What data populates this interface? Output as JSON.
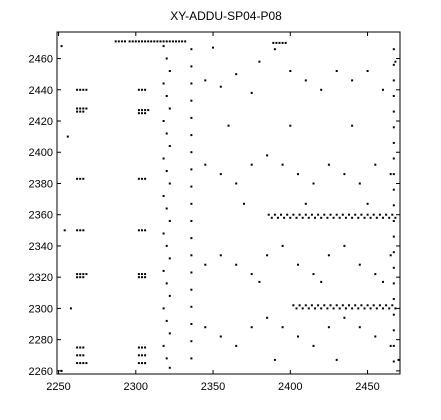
{
  "chart_data": {
    "type": "scatter",
    "title": "XY-ADDU-SP04-P08",
    "xlabel": "",
    "ylabel": "",
    "xlim": [
      2249,
      2471
    ],
    "ylim": [
      2258,
      2477
    ],
    "x_ticks": [
      2250,
      2300,
      2350,
      2400,
      2450
    ],
    "y_ticks": [
      2260,
      2280,
      2300,
      2320,
      2340,
      2360,
      2380,
      2400,
      2420,
      2440,
      2460
    ],
    "grid": false,
    "legend": "none",
    "marker_color": "#000000",
    "series": [
      {
        "points": [
          [
            2262,
            2440
          ],
          [
            2264,
            2440
          ],
          [
            2266,
            2440
          ],
          [
            2268,
            2440
          ],
          [
            2262,
            2428
          ],
          [
            2264,
            2428
          ],
          [
            2266,
            2428
          ],
          [
            2268,
            2428
          ],
          [
            2262,
            2426
          ],
          [
            2264,
            2426
          ],
          [
            2266,
            2426
          ],
          [
            2262,
            2383
          ],
          [
            2264,
            2383
          ],
          [
            2266,
            2383
          ],
          [
            2262,
            2350
          ],
          [
            2264,
            2350
          ],
          [
            2266,
            2350
          ],
          [
            2262,
            2322
          ],
          [
            2264,
            2322
          ],
          [
            2266,
            2322
          ],
          [
            2268,
            2322
          ],
          [
            2262,
            2320
          ],
          [
            2264,
            2320
          ],
          [
            2266,
            2320
          ],
          [
            2262,
            2275
          ],
          [
            2264,
            2275
          ],
          [
            2266,
            2275
          ],
          [
            2262,
            2270
          ],
          [
            2264,
            2270
          ],
          [
            2266,
            2270
          ],
          [
            2262,
            2265
          ],
          [
            2264,
            2265
          ],
          [
            2266,
            2265
          ],
          [
            2268,
            2265
          ],
          [
            2302,
            2440
          ],
          [
            2304,
            2440
          ],
          [
            2306,
            2440
          ],
          [
            2302,
            2427
          ],
          [
            2304,
            2427
          ],
          [
            2306,
            2427
          ],
          [
            2308,
            2427
          ],
          [
            2302,
            2425
          ],
          [
            2304,
            2425
          ],
          [
            2306,
            2425
          ],
          [
            2302,
            2383
          ],
          [
            2304,
            2383
          ],
          [
            2306,
            2383
          ],
          [
            2302,
            2350
          ],
          [
            2304,
            2350
          ],
          [
            2306,
            2350
          ],
          [
            2302,
            2322
          ],
          [
            2304,
            2322
          ],
          [
            2306,
            2322
          ],
          [
            2302,
            2320
          ],
          [
            2304,
            2320
          ],
          [
            2306,
            2320
          ],
          [
            2302,
            2275
          ],
          [
            2304,
            2275
          ],
          [
            2306,
            2275
          ],
          [
            2302,
            2270
          ],
          [
            2304,
            2270
          ],
          [
            2306,
            2270
          ],
          [
            2302,
            2265
          ],
          [
            2304,
            2265
          ],
          [
            2306,
            2265
          ],
          [
            2318,
            2468
          ],
          [
            2320,
            2460
          ],
          [
            2322,
            2452
          ],
          [
            2318,
            2444
          ],
          [
            2320,
            2436
          ],
          [
            2322,
            2428
          ],
          [
            2318,
            2420
          ],
          [
            2320,
            2412
          ],
          [
            2322,
            2404
          ],
          [
            2318,
            2396
          ],
          [
            2320,
            2388
          ],
          [
            2322,
            2380
          ],
          [
            2318,
            2372
          ],
          [
            2320,
            2364
          ],
          [
            2322,
            2356
          ],
          [
            2318,
            2348
          ],
          [
            2320,
            2340
          ],
          [
            2322,
            2332
          ],
          [
            2318,
            2324
          ],
          [
            2320,
            2316
          ],
          [
            2322,
            2308
          ],
          [
            2318,
            2300
          ],
          [
            2320,
            2292
          ],
          [
            2322,
            2284
          ],
          [
            2318,
            2276
          ],
          [
            2320,
            2268
          ],
          [
            2322,
            2262
          ],
          [
            2336,
            2466
          ],
          [
            2336,
            2455
          ],
          [
            2336,
            2444
          ],
          [
            2336,
            2433
          ],
          [
            2336,
            2422
          ],
          [
            2336,
            2411
          ],
          [
            2336,
            2400
          ],
          [
            2336,
            2389
          ],
          [
            2336,
            2378
          ],
          [
            2336,
            2367
          ],
          [
            2336,
            2356
          ],
          [
            2336,
            2345
          ],
          [
            2336,
            2334
          ],
          [
            2336,
            2323
          ],
          [
            2336,
            2312
          ],
          [
            2336,
            2301
          ],
          [
            2336,
            2290
          ],
          [
            2336,
            2279
          ],
          [
            2336,
            2268
          ],
          [
            2345,
            2446
          ],
          [
            2355,
            2442
          ],
          [
            2365,
            2450
          ],
          [
            2375,
            2438
          ],
          [
            2380,
            2458
          ],
          [
            2390,
            2466
          ],
          [
            2400,
            2452
          ],
          [
            2410,
            2446
          ],
          [
            2420,
            2440
          ],
          [
            2430,
            2452
          ],
          [
            2440,
            2446
          ],
          [
            2450,
            2452
          ],
          [
            2460,
            2440
          ],
          [
            2468,
            2458
          ],
          [
            2345,
            2392
          ],
          [
            2355,
            2386
          ],
          [
            2365,
            2380
          ],
          [
            2375,
            2392
          ],
          [
            2385,
            2398
          ],
          [
            2395,
            2392
          ],
          [
            2405,
            2386
          ],
          [
            2415,
            2380
          ],
          [
            2425,
            2392
          ],
          [
            2435,
            2386
          ],
          [
            2445,
            2380
          ],
          [
            2455,
            2392
          ],
          [
            2465,
            2386
          ],
          [
            2345,
            2328
          ],
          [
            2355,
            2334
          ],
          [
            2365,
            2328
          ],
          [
            2375,
            2322
          ],
          [
            2385,
            2334
          ],
          [
            2395,
            2340
          ],
          [
            2405,
            2328
          ],
          [
            2415,
            2322
          ],
          [
            2425,
            2334
          ],
          [
            2435,
            2340
          ],
          [
            2445,
            2328
          ],
          [
            2455,
            2322
          ],
          [
            2465,
            2334
          ],
          [
            2345,
            2288
          ],
          [
            2355,
            2282
          ],
          [
            2365,
            2276
          ],
          [
            2375,
            2288
          ],
          [
            2385,
            2294
          ],
          [
            2395,
            2288
          ],
          [
            2405,
            2282
          ],
          [
            2415,
            2276
          ],
          [
            2425,
            2288
          ],
          [
            2435,
            2294
          ],
          [
            2445,
            2288
          ],
          [
            2455,
            2282
          ],
          [
            2465,
            2276
          ],
          [
            2350,
            2467
          ],
          [
            2360,
            2417
          ],
          [
            2370,
            2367
          ],
          [
            2380,
            2317
          ],
          [
            2390,
            2267
          ],
          [
            2400,
            2417
          ],
          [
            2410,
            2367
          ],
          [
            2420,
            2317
          ],
          [
            2430,
            2267
          ],
          [
            2440,
            2417
          ],
          [
            2450,
            2367
          ],
          [
            2460,
            2317
          ],
          [
            2470,
            2267
          ],
          [
            2386,
            2360
          ],
          [
            2388,
            2358
          ],
          [
            2390,
            2360
          ],
          [
            2392,
            2358
          ],
          [
            2394,
            2360
          ],
          [
            2396,
            2358
          ],
          [
            2398,
            2360
          ],
          [
            2400,
            2358
          ],
          [
            2402,
            2360
          ],
          [
            2404,
            2358
          ],
          [
            2406,
            2360
          ],
          [
            2408,
            2358
          ],
          [
            2410,
            2360
          ],
          [
            2412,
            2358
          ],
          [
            2414,
            2360
          ],
          [
            2416,
            2358
          ],
          [
            2418,
            2360
          ],
          [
            2420,
            2358
          ],
          [
            2422,
            2360
          ],
          [
            2424,
            2358
          ],
          [
            2426,
            2360
          ],
          [
            2428,
            2358
          ],
          [
            2430,
            2360
          ],
          [
            2432,
            2358
          ],
          [
            2434,
            2360
          ],
          [
            2436,
            2358
          ],
          [
            2438,
            2360
          ],
          [
            2440,
            2358
          ],
          [
            2442,
            2360
          ],
          [
            2444,
            2358
          ],
          [
            2446,
            2360
          ],
          [
            2448,
            2358
          ],
          [
            2450,
            2360
          ],
          [
            2452,
            2358
          ],
          [
            2454,
            2360
          ],
          [
            2456,
            2358
          ],
          [
            2458,
            2360
          ],
          [
            2460,
            2358
          ],
          [
            2462,
            2360
          ],
          [
            2464,
            2358
          ],
          [
            2466,
            2360
          ],
          [
            2468,
            2358
          ],
          [
            2402,
            2302
          ],
          [
            2404,
            2300
          ],
          [
            2406,
            2302
          ],
          [
            2408,
            2300
          ],
          [
            2410,
            2302
          ],
          [
            2412,
            2300
          ],
          [
            2414,
            2302
          ],
          [
            2416,
            2300
          ],
          [
            2418,
            2302
          ],
          [
            2420,
            2300
          ],
          [
            2422,
            2302
          ],
          [
            2424,
            2300
          ],
          [
            2426,
            2302
          ],
          [
            2428,
            2300
          ],
          [
            2430,
            2302
          ],
          [
            2432,
            2300
          ],
          [
            2434,
            2302
          ],
          [
            2436,
            2300
          ],
          [
            2438,
            2302
          ],
          [
            2440,
            2300
          ],
          [
            2442,
            2302
          ],
          [
            2444,
            2300
          ],
          [
            2446,
            2302
          ],
          [
            2448,
            2300
          ],
          [
            2450,
            2302
          ],
          [
            2452,
            2300
          ],
          [
            2454,
            2302
          ],
          [
            2456,
            2300
          ],
          [
            2458,
            2302
          ],
          [
            2460,
            2300
          ],
          [
            2462,
            2302
          ],
          [
            2464,
            2300
          ],
          [
            2466,
            2302
          ],
          [
            2468,
            2300
          ],
          [
            2252,
            2468
          ],
          [
            2256,
            2410
          ],
          [
            2254,
            2350
          ],
          [
            2258,
            2300
          ],
          [
            2252,
            2260
          ],
          [
            2287,
            2471
          ],
          [
            2289,
            2471
          ],
          [
            2291,
            2471
          ],
          [
            2293,
            2471
          ],
          [
            2296,
            2471
          ],
          [
            2298,
            2471
          ],
          [
            2300,
            2471
          ],
          [
            2302,
            2471
          ],
          [
            2304,
            2471
          ],
          [
            2306,
            2471
          ],
          [
            2308,
            2471
          ],
          [
            2310,
            2471
          ],
          [
            2312,
            2471
          ],
          [
            2314,
            2471
          ],
          [
            2316,
            2471
          ],
          [
            2318,
            2471
          ],
          [
            2320,
            2471
          ],
          [
            2322,
            2471
          ],
          [
            2324,
            2471
          ],
          [
            2326,
            2471
          ],
          [
            2328,
            2471
          ],
          [
            2330,
            2471
          ],
          [
            2332,
            2471
          ],
          [
            2389,
            2470
          ],
          [
            2391,
            2470
          ],
          [
            2393,
            2470
          ],
          [
            2395,
            2470
          ],
          [
            2397,
            2470
          ],
          [
            2467,
            2466
          ],
          [
            2467,
            2456
          ],
          [
            2467,
            2446
          ],
          [
            2467,
            2436
          ],
          [
            2467,
            2426
          ],
          [
            2467,
            2416
          ],
          [
            2467,
            2406
          ],
          [
            2467,
            2396
          ],
          [
            2467,
            2386
          ],
          [
            2467,
            2376
          ],
          [
            2467,
            2366
          ],
          [
            2467,
            2356
          ],
          [
            2467,
            2346
          ],
          [
            2467,
            2336
          ],
          [
            2467,
            2326
          ],
          [
            2467,
            2316
          ],
          [
            2467,
            2306
          ],
          [
            2467,
            2296
          ],
          [
            2467,
            2286
          ],
          [
            2467,
            2276
          ],
          [
            2467,
            2266
          ]
        ]
      }
    ]
  }
}
